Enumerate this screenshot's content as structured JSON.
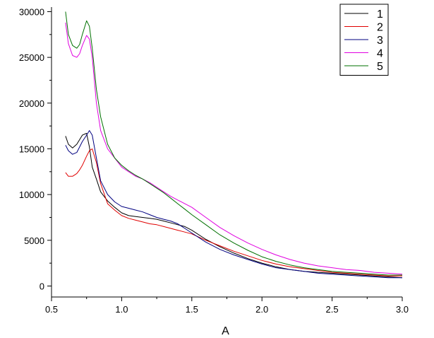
{
  "chart_data": {
    "type": "line",
    "title": "",
    "xlabel": "A",
    "ylabel": "",
    "xlim": [
      0.5,
      3.0
    ],
    "ylim": [
      -1200,
      30500
    ],
    "x_ticks": [
      0.5,
      1.0,
      1.5,
      2.0,
      2.5,
      3.0
    ],
    "x_tick_labels": [
      "0.5",
      "1.0",
      "1.5",
      "2.0",
      "2.5",
      "3.0"
    ],
    "y_ticks": [
      0,
      5000,
      10000,
      15000,
      20000,
      25000,
      30000
    ],
    "y_tick_labels": [
      "0",
      "5000",
      "10000",
      "15000",
      "20000",
      "25000",
      "30000"
    ],
    "grid": false,
    "legend_position": "top-right",
    "series": [
      {
        "name": "1",
        "color": "#000000",
        "x": [
          0.6,
          0.62,
          0.65,
          0.68,
          0.7,
          0.72,
          0.75,
          0.77,
          0.79,
          0.82,
          0.85,
          0.9,
          0.95,
          1.0,
          1.05,
          1.1,
          1.15,
          1.2,
          1.25,
          1.3,
          1.35,
          1.4,
          1.45,
          1.5,
          1.6,
          1.7,
          1.8,
          1.9,
          2.0,
          2.1,
          2.2,
          2.3,
          2.4,
          2.5,
          2.6,
          2.7,
          2.8,
          2.9,
          3.0
        ],
        "y": [
          16400,
          15500,
          15100,
          15500,
          16000,
          16500,
          16700,
          15200,
          13000,
          11700,
          10300,
          9300,
          8600,
          8000,
          7700,
          7600,
          7500,
          7400,
          7300,
          7100,
          6900,
          6700,
          6500,
          6100,
          5100,
          4300,
          3600,
          3000,
          2500,
          2100,
          1800,
          1600,
          1500,
          1400,
          1300,
          1200,
          1100,
          1000,
          900
        ]
      },
      {
        "name": "2",
        "color": "#e00000",
        "x": [
          0.6,
          0.62,
          0.65,
          0.68,
          0.7,
          0.72,
          0.75,
          0.77,
          0.79,
          0.82,
          0.85,
          0.9,
          0.95,
          1.0,
          1.05,
          1.1,
          1.15,
          1.2,
          1.25,
          1.3,
          1.35,
          1.4,
          1.45,
          1.5,
          1.6,
          1.7,
          1.8,
          1.9,
          2.0,
          2.1,
          2.2,
          2.3,
          2.4,
          2.5,
          2.6,
          2.7,
          2.8,
          2.9,
          3.0
        ],
        "y": [
          12400,
          12000,
          12000,
          12300,
          12700,
          13200,
          14200,
          14800,
          15000,
          13500,
          11200,
          9000,
          8300,
          7700,
          7400,
          7200,
          7000,
          6800,
          6700,
          6500,
          6300,
          6100,
          5900,
          5700,
          5000,
          4400,
          3800,
          3300,
          2800,
          2400,
          2100,
          1900,
          1700,
          1500,
          1400,
          1300,
          1200,
          1100,
          1100
        ]
      },
      {
        "name": "3",
        "color": "#000080",
        "x": [
          0.6,
          0.62,
          0.65,
          0.68,
          0.7,
          0.72,
          0.75,
          0.77,
          0.79,
          0.82,
          0.85,
          0.9,
          0.95,
          1.0,
          1.05,
          1.1,
          1.15,
          1.2,
          1.25,
          1.3,
          1.35,
          1.4,
          1.45,
          1.5,
          1.6,
          1.7,
          1.8,
          1.9,
          2.0,
          2.1,
          2.2,
          2.3,
          2.4,
          2.5,
          2.6,
          2.7,
          2.8,
          2.9,
          3.0
        ],
        "y": [
          15400,
          14800,
          14400,
          14600,
          15200,
          15800,
          16500,
          17000,
          16500,
          14000,
          11500,
          10000,
          9200,
          8700,
          8500,
          8300,
          8100,
          7800,
          7500,
          7300,
          7100,
          6800,
          6300,
          5800,
          4800,
          4000,
          3400,
          2900,
          2400,
          2000,
          1800,
          1600,
          1400,
          1300,
          1200,
          1100,
          1000,
          900,
          900
        ]
      },
      {
        "name": "4",
        "color": "#e000e0",
        "x": [
          0.6,
          0.62,
          0.65,
          0.68,
          0.7,
          0.72,
          0.75,
          0.77,
          0.79,
          0.82,
          0.85,
          0.9,
          0.95,
          1.0,
          1.05,
          1.1,
          1.15,
          1.2,
          1.25,
          1.3,
          1.35,
          1.4,
          1.45,
          1.5,
          1.6,
          1.7,
          1.8,
          1.9,
          2.0,
          2.1,
          2.2,
          2.3,
          2.4,
          2.5,
          2.6,
          2.7,
          2.8,
          2.9,
          3.0
        ],
        "y": [
          28800,
          26500,
          25200,
          25000,
          25400,
          26300,
          27400,
          27000,
          25000,
          20000,
          17000,
          15000,
          14000,
          13000,
          12500,
          12000,
          11700,
          11300,
          10800,
          10300,
          9800,
          9400,
          9000,
          8600,
          7500,
          6400,
          5500,
          4700,
          4000,
          3400,
          2900,
          2500,
          2200,
          2000,
          1800,
          1700,
          1500,
          1400,
          1300
        ]
      },
      {
        "name": "5",
        "color": "#007000",
        "x": [
          0.6,
          0.62,
          0.65,
          0.68,
          0.7,
          0.72,
          0.75,
          0.77,
          0.79,
          0.82,
          0.85,
          0.9,
          0.95,
          1.0,
          1.05,
          1.1,
          1.15,
          1.2,
          1.25,
          1.3,
          1.35,
          1.4,
          1.45,
          1.5,
          1.6,
          1.7,
          1.8,
          1.9,
          2.0,
          2.1,
          2.2,
          2.3,
          2.4,
          2.5,
          2.6,
          2.7,
          2.8,
          2.9,
          3.0
        ],
        "y": [
          30000,
          27500,
          26300,
          26000,
          26400,
          27500,
          29000,
          28400,
          26000,
          21500,
          18500,
          15500,
          14000,
          13200,
          12600,
          12100,
          11700,
          11200,
          10700,
          10200,
          9600,
          9000,
          8400,
          7800,
          6700,
          5600,
          4700,
          3900,
          3200,
          2700,
          2300,
          2000,
          1800,
          1600,
          1500,
          1400,
          1300,
          1200,
          1200
        ]
      }
    ]
  }
}
